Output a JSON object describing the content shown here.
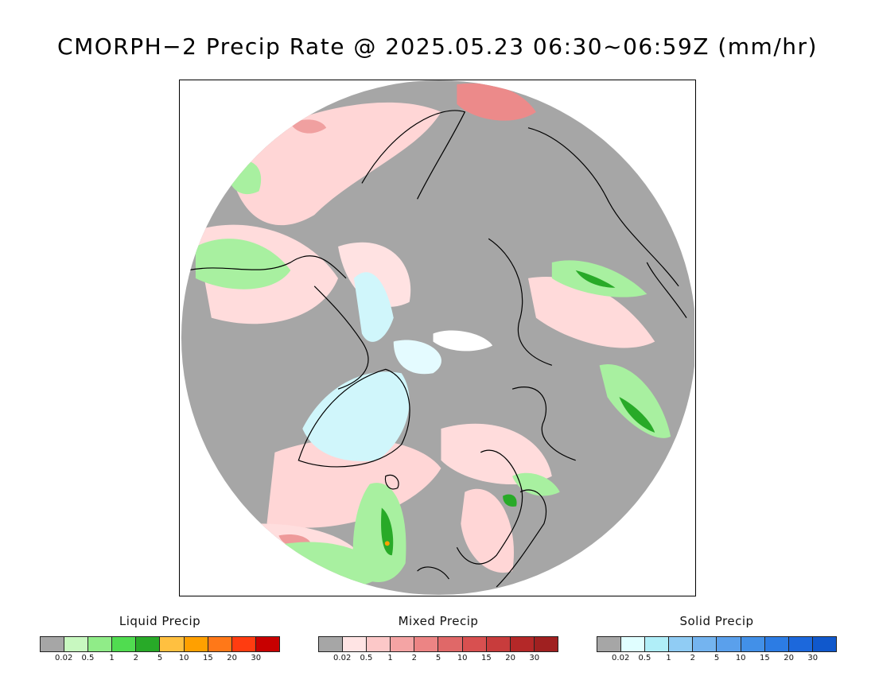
{
  "title": "CMORPH−2 Precip Rate @ 2025.05.23 06:30~06:59Z (mm/hr)",
  "legends": [
    {
      "title": "Liquid Precip",
      "colors": [
        "#a6a6a6",
        "#c8f8c0",
        "#90ec88",
        "#50dc50",
        "#28aa28",
        "#ffc040",
        "#ffa000",
        "#ff7818",
        "#ff3c10",
        "#c80000"
      ],
      "ticks": [
        "0.02",
        "0.5",
        "1",
        "2",
        "5",
        "10",
        "15",
        "20",
        "30"
      ]
    },
    {
      "title": "Mixed Precip",
      "colors": [
        "#a6a6a6",
        "#ffe4e4",
        "#fcc8c8",
        "#f4a4a4",
        "#ec8484",
        "#e06868",
        "#d85050",
        "#c83c3c",
        "#b42828",
        "#a02020"
      ],
      "ticks": [
        "0.02",
        "0.5",
        "1",
        "2",
        "5",
        "10",
        "15",
        "20",
        "30"
      ]
    },
    {
      "title": "Solid Precip",
      "colors": [
        "#a6a6a6",
        "#e0feff",
        "#b0eef8",
        "#90ccf4",
        "#74b4f0",
        "#5aa0ec",
        "#4290e8",
        "#2c7ce4",
        "#1c68dc",
        "#1058cc"
      ],
      "ticks": [
        "0.02",
        "0.5",
        "1",
        "2",
        "5",
        "10",
        "15",
        "20",
        "30"
      ]
    }
  ]
}
